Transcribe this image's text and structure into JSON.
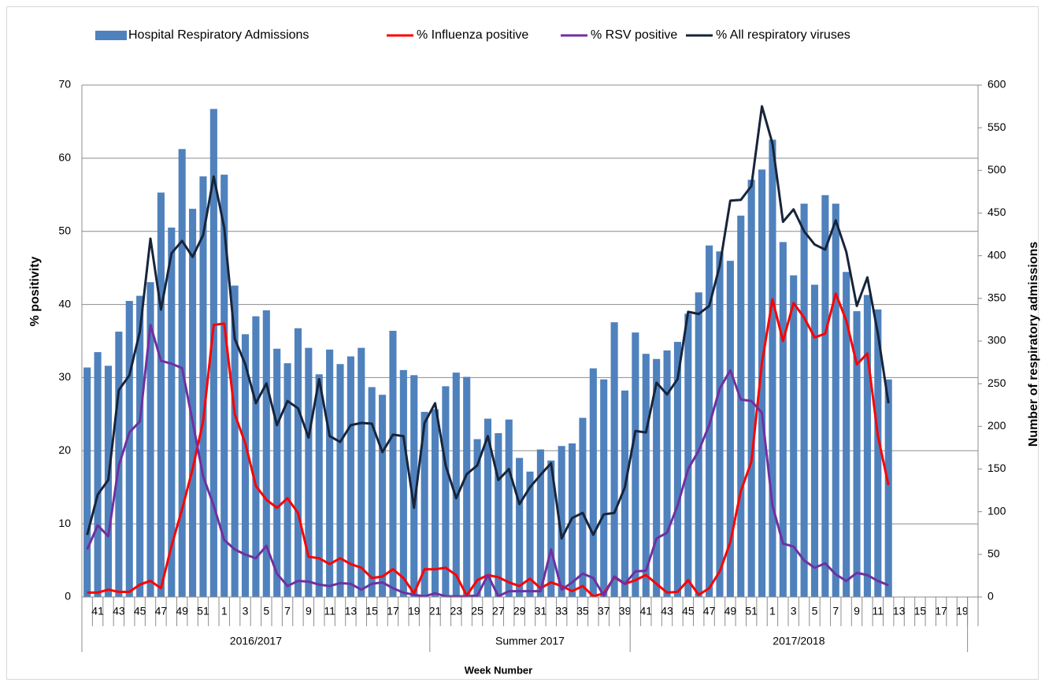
{
  "chart_data": {
    "type": "combo",
    "y_label": "% positivity",
    "y2_label": "Number of respiratory admissions",
    "x_label": "Week Number",
    "ylim": [
      0,
      70
    ],
    "yticks": [
      0,
      10,
      20,
      30,
      40,
      50,
      60,
      70
    ],
    "y2lim": [
      0,
      600
    ],
    "y2ticks": [
      0,
      50,
      100,
      150,
      200,
      250,
      300,
      350,
      400,
      450,
      500,
      550,
      600
    ],
    "grid": true,
    "legend": "top",
    "categories": [
      null,
      "41",
      null,
      "43",
      null,
      "45",
      null,
      "47",
      null,
      "49",
      null,
      "51",
      null,
      "1",
      null,
      "3",
      null,
      "5",
      null,
      "7",
      null,
      "9",
      null,
      "11",
      null,
      "13",
      null,
      "15",
      null,
      "17",
      null,
      "19",
      null,
      "21",
      null,
      "23",
      null,
      "25",
      null,
      "27",
      null,
      "29",
      null,
      "31",
      null,
      "33",
      null,
      "35",
      null,
      "37",
      null,
      "39",
      null,
      "41",
      null,
      "43",
      null,
      "45",
      null,
      "47",
      null,
      "49",
      null,
      "51",
      null,
      "1",
      null,
      "3",
      null,
      "5",
      null,
      "7",
      null,
      "9",
      null,
      "11",
      null,
      "13",
      null,
      "15",
      null,
      "17",
      null,
      "19",
      null
    ],
    "groups": [
      {
        "name": "2016/2017",
        "span": 33
      },
      {
        "name": "Summer 2017",
        "span": 19
      },
      {
        "name": "2017/2018",
        "span": 32
      }
    ],
    "series": [
      {
        "name": "Hospital Respiratory Admissions",
        "type": "bar",
        "axis": "y2",
        "color": "#4f81bd",
        "values": [
          269,
          287,
          271,
          311,
          347,
          353,
          369,
          474,
          433,
          525,
          455,
          493,
          572,
          495,
          365,
          308,
          329,
          336,
          291,
          274,
          315,
          292,
          261,
          290,
          273,
          282,
          292,
          246,
          237,
          312,
          266,
          260,
          217,
          220,
          247,
          263,
          258,
          185,
          209,
          192,
          208,
          163,
          147,
          173,
          160,
          177,
          180,
          210,
          268,
          255,
          322,
          242,
          310,
          285,
          279,
          289,
          299,
          332,
          357,
          412,
          405,
          394,
          447,
          489,
          501,
          536,
          416,
          377,
          461,
          366,
          471,
          461,
          381,
          335,
          354,
          337,
          255,
          null,
          null,
          null,
          null,
          null,
          null,
          null,
          null
        ]
      },
      {
        "name": "% Influenza positive",
        "type": "line",
        "color": "#ff0000",
        "values": [
          0.6,
          0.6,
          1.0,
          0.7,
          0.7,
          1.7,
          2.2,
          1.2,
          7.0,
          12.0,
          17.5,
          24.0,
          37.2,
          37.4,
          25.0,
          21.0,
          15.2,
          13.3,
          12.2,
          13.5,
          11.5,
          5.5,
          5.3,
          4.5,
          5.3,
          4.5,
          4.0,
          2.6,
          2.8,
          3.8,
          2.6,
          0.5,
          3.8,
          3.8,
          4.0,
          3.0,
          0.2,
          2.3,
          3.0,
          2.7,
          2.0,
          1.5,
          2.5,
          1.2,
          2.0,
          1.5,
          0.8,
          1.5,
          0.1,
          0.5,
          2.7,
          1.8,
          2.3,
          3.0,
          1.8,
          0.6,
          0.7,
          2.3,
          0.3,
          1.2,
          3.5,
          7.5,
          14.5,
          18.5,
          32.0,
          40.7,
          35.0,
          40.2,
          38.2,
          35.5,
          36.0,
          41.5,
          37.8,
          31.8,
          33.3,
          22.0,
          15.3,
          null,
          null,
          null,
          null,
          null,
          null,
          null,
          null
        ]
      },
      {
        "name": "% RSV positive",
        "type": "line",
        "color": "#7030a0",
        "values": [
          6.5,
          9.8,
          8.3,
          18.0,
          22.5,
          24.0,
          37.2,
          32.3,
          31.9,
          31.3,
          24.0,
          16.5,
          12.5,
          7.8,
          6.5,
          5.8,
          5.3,
          7.0,
          3.2,
          1.5,
          2.2,
          2.1,
          1.7,
          1.5,
          1.9,
          1.8,
          1.0,
          1.8,
          2.0,
          1.2,
          0.6,
          0.3,
          0.1,
          0.5,
          0.1,
          0.1,
          0.1,
          0.2,
          3.0,
          0.1,
          0.8,
          0.8,
          0.8,
          0.8,
          6.5,
          1.0,
          2.0,
          3.2,
          2.6,
          0.2,
          2.8,
          1.8,
          3.5,
          3.6,
          8.0,
          8.8,
          12.5,
          17.5,
          20.0,
          23.5,
          28.5,
          31.0,
          27.0,
          26.8,
          25.2,
          12.5,
          7.3,
          6.9,
          5.0,
          4.0,
          4.6,
          3.1,
          2.2,
          3.3,
          3.0,
          2.2,
          1.6,
          null,
          null,
          null,
          null,
          null,
          null,
          null,
          null
        ]
      },
      {
        "name": "% All respiratory viruses",
        "type": "line",
        "color": "#17243a",
        "values": [
          8.5,
          14.0,
          16.0,
          28.3,
          30.3,
          36.3,
          49.0,
          39.3,
          47.0,
          48.7,
          46.5,
          49.5,
          57.5,
          50.5,
          35.3,
          31.8,
          26.5,
          29.2,
          23.5,
          26.8,
          25.8,
          21.8,
          29.8,
          22.0,
          21.2,
          23.5,
          23.8,
          23.7,
          19.8,
          22.2,
          22.0,
          12.2,
          23.8,
          26.5,
          18.0,
          13.5,
          16.8,
          18.0,
          22.0,
          16.0,
          17.5,
          12.7,
          15.0,
          16.7,
          18.3,
          8.0,
          10.8,
          11.5,
          8.5,
          11.3,
          11.5,
          15.0,
          22.7,
          22.5,
          29.3,
          27.7,
          29.8,
          39.0,
          38.7,
          39.8,
          45.3,
          54.2,
          54.3,
          56.2,
          67.1,
          62.0,
          51.3,
          53.0,
          50.0,
          48.2,
          47.5,
          51.5,
          47.2,
          39.8,
          43.7,
          36.0,
          26.5,
          null,
          null,
          null,
          null,
          null,
          null,
          null,
          null
        ]
      }
    ]
  }
}
